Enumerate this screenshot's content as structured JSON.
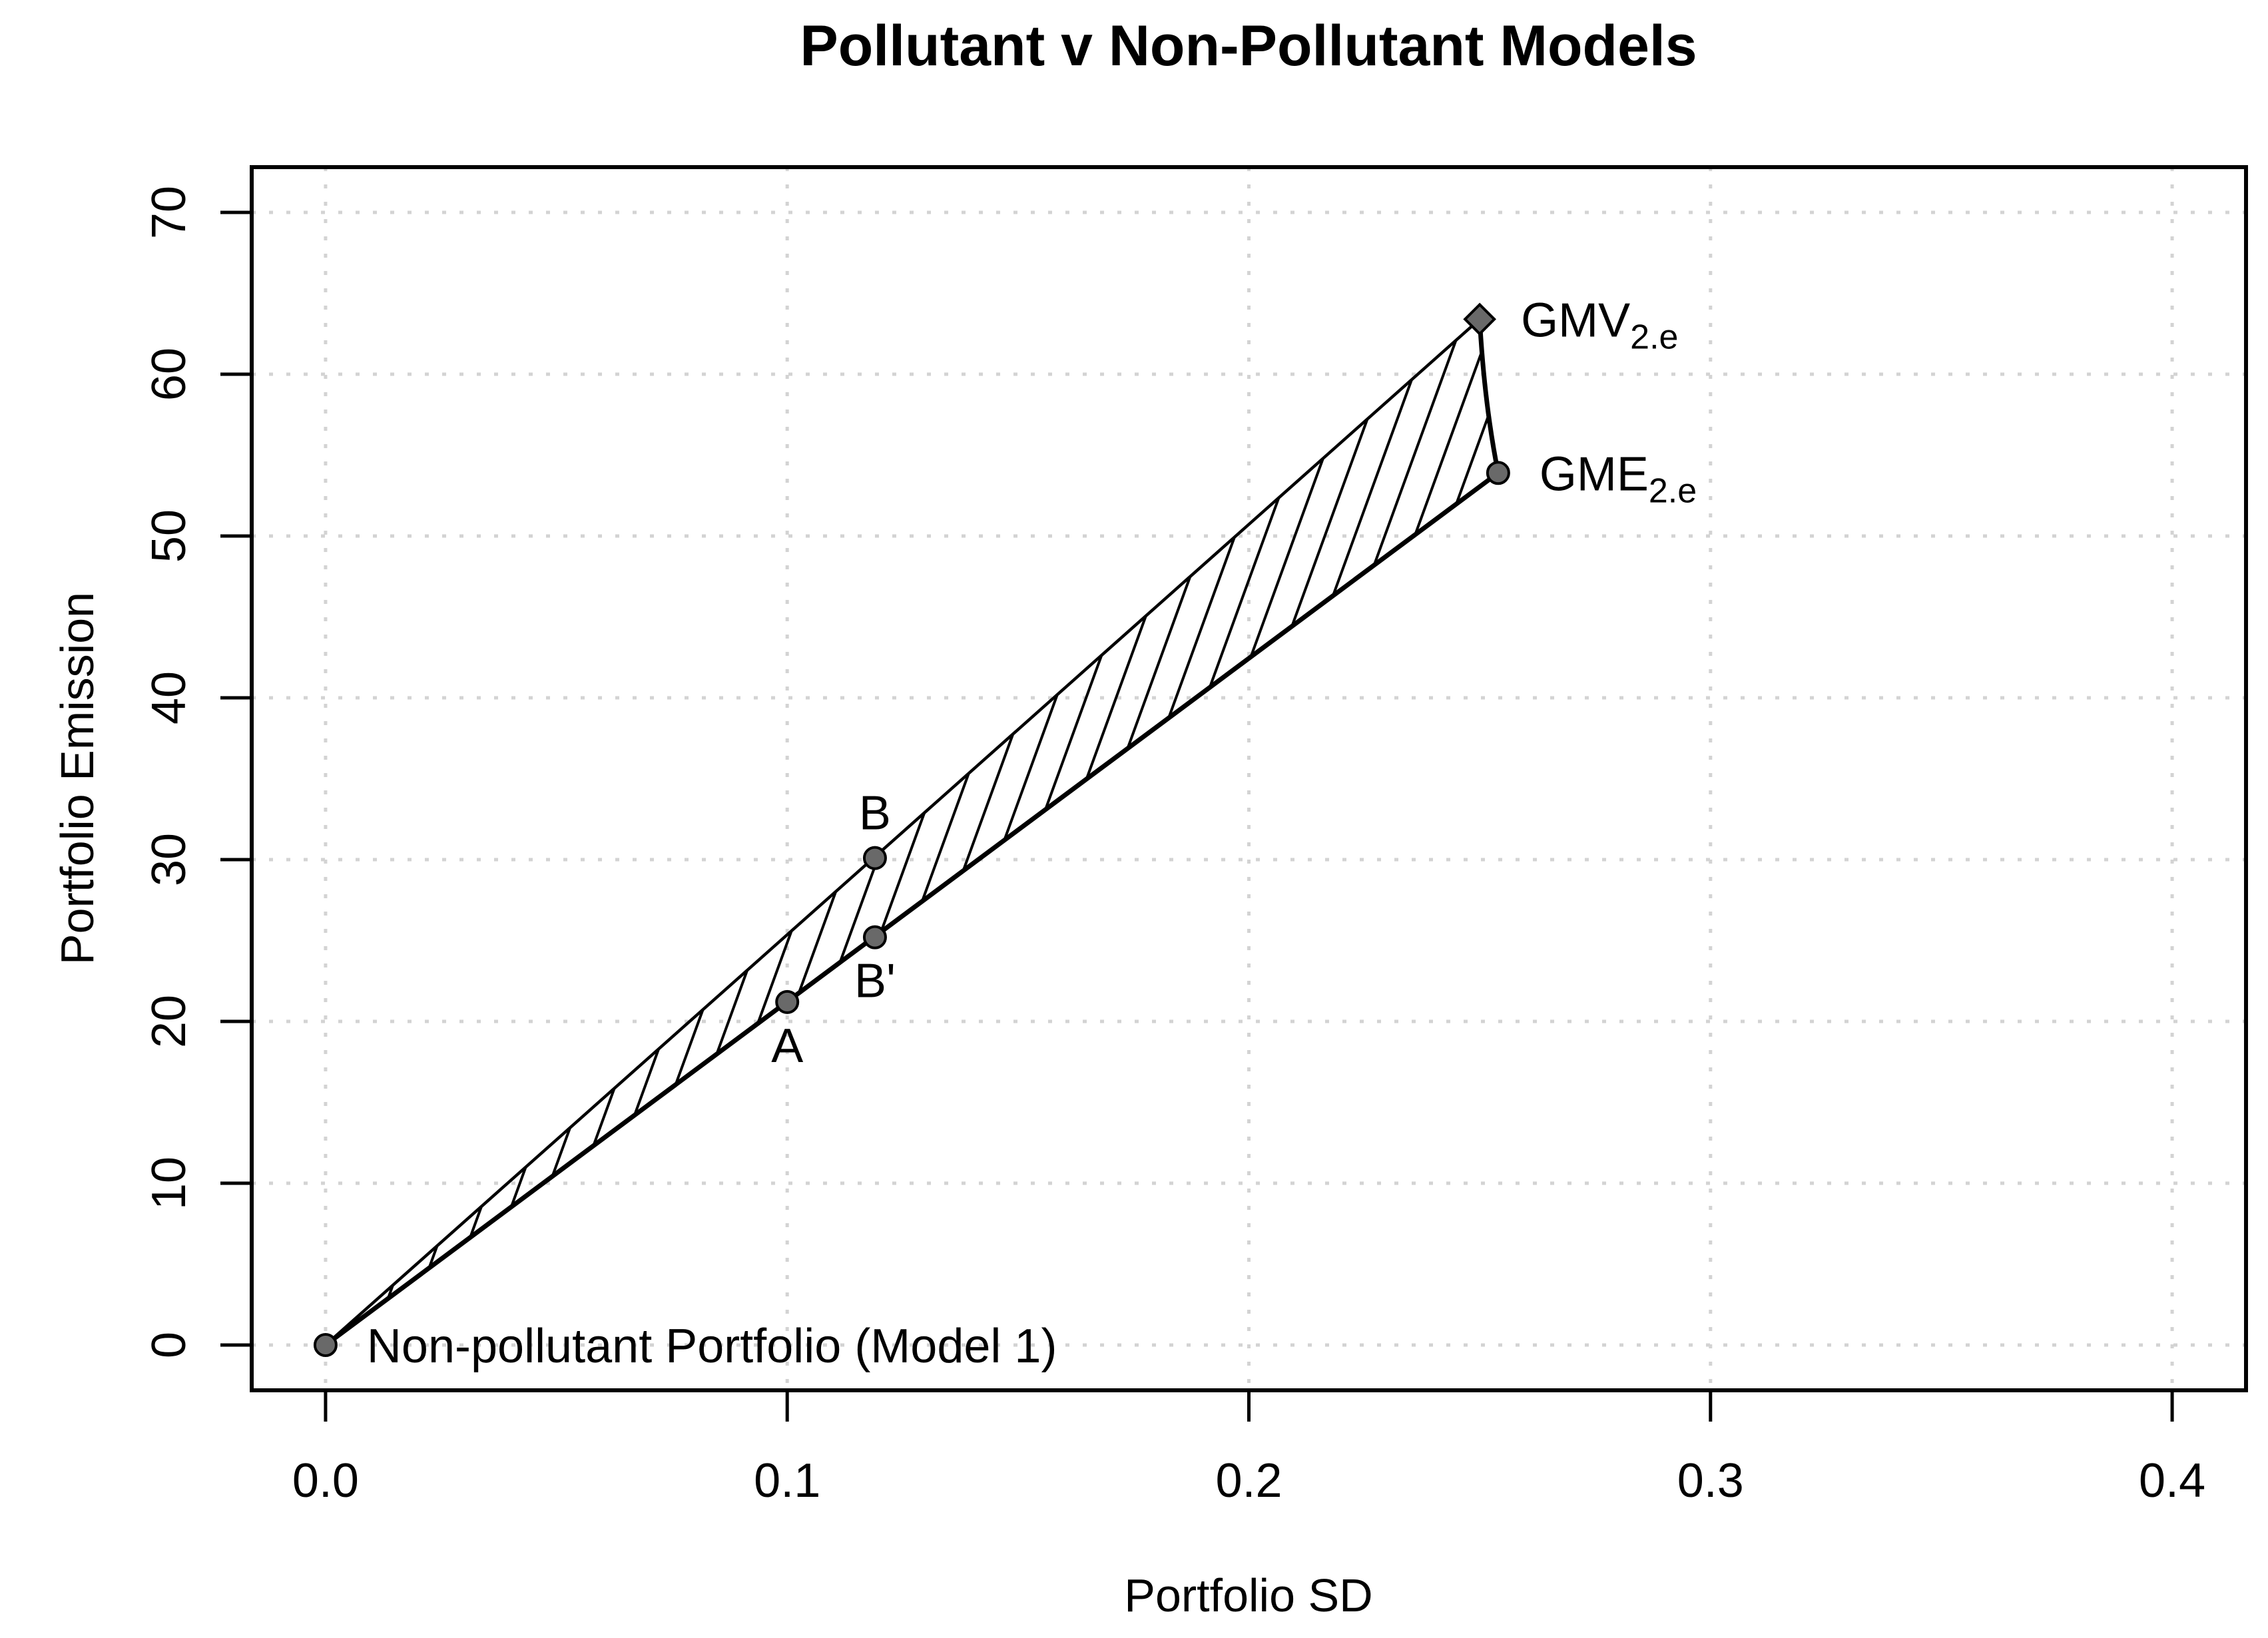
{
  "chart_data": {
    "type": "scatter",
    "title": "Pollutant v Non-Pollutant Models",
    "xlabel": "Portfolio SD",
    "ylabel": "Portfolio Emission",
    "xlim": [
      0,
      0.4
    ],
    "ylim": [
      0,
      70
    ],
    "x_ticks": [
      "0.0",
      "0.1",
      "0.2",
      "0.3",
      "0.4"
    ],
    "x_tick_values": [
      0,
      0.1,
      0.2,
      0.3,
      0.4
    ],
    "y_ticks": [
      "0",
      "10",
      "20",
      "30",
      "40",
      "50",
      "60",
      "70"
    ],
    "y_tick_values": [
      0,
      10,
      20,
      30,
      40,
      50,
      60,
      70
    ],
    "grid": true,
    "legend_position": "none",
    "points": [
      {
        "name": "non-pollutant-portfolio",
        "x": 0,
        "y": 0,
        "marker": "circle",
        "label": "Non-pollutant Portfolio (Model 1)",
        "label_sub": "",
        "label_pos": "right"
      },
      {
        "name": "A",
        "x": 0.1,
        "y": 21.2,
        "marker": "circle",
        "label": "A",
        "label_sub": "",
        "label_pos": "below"
      },
      {
        "name": "B",
        "x": 0.119,
        "y": 30.1,
        "marker": "circle",
        "label": "B",
        "label_sub": "",
        "label_pos": "above"
      },
      {
        "name": "B-prime",
        "x": 0.119,
        "y": 25.2,
        "marker": "circle",
        "label": "B'",
        "label_sub": "",
        "label_pos": "below"
      },
      {
        "name": "GMV",
        "x": 0.25,
        "y": 63.4,
        "marker": "diamond",
        "label": "GMV",
        "label_sub": "2.e",
        "label_pos": "right"
      },
      {
        "name": "GME",
        "x": 0.254,
        "y": 53.9,
        "marker": "circle",
        "label": "GME",
        "label_sub": "2.e",
        "label_pos": "right"
      }
    ],
    "lines": [
      {
        "name": "upper-frontier",
        "kind": "segment",
        "from": [
          0,
          0
        ],
        "to": [
          0.25,
          63.4
        ],
        "width": 4.5
      },
      {
        "name": "lower-frontier",
        "kind": "segment",
        "from": [
          0,
          0
        ],
        "to": [
          0.254,
          53.9
        ],
        "width": 7
      },
      {
        "name": "gmv-gme-frontier",
        "kind": "curve",
        "from": [
          0.25,
          63.4
        ],
        "control": [
          0.251,
          58.2
        ],
        "to": [
          0.254,
          53.9
        ],
        "width": 7
      }
    ],
    "hatched_region": {
      "vertices": [
        [
          0,
          0
        ],
        [
          0.25,
          63.4
        ],
        [
          0.254,
          53.9
        ]
      ],
      "curved_edge": {
        "from": [
          0.25,
          63.4
        ],
        "control": [
          0.251,
          58.2
        ],
        "to": [
          0.254,
          53.9
        ]
      },
      "hatch_angle_deg": 70,
      "hatch_spacing_px": 45
    },
    "colors": {
      "marker_fill": "#696969",
      "marker_stroke": "#000000",
      "line": "#000000",
      "grid": "#D3D3D3",
      "text": "#000000",
      "background": "#FFFFFF"
    }
  }
}
